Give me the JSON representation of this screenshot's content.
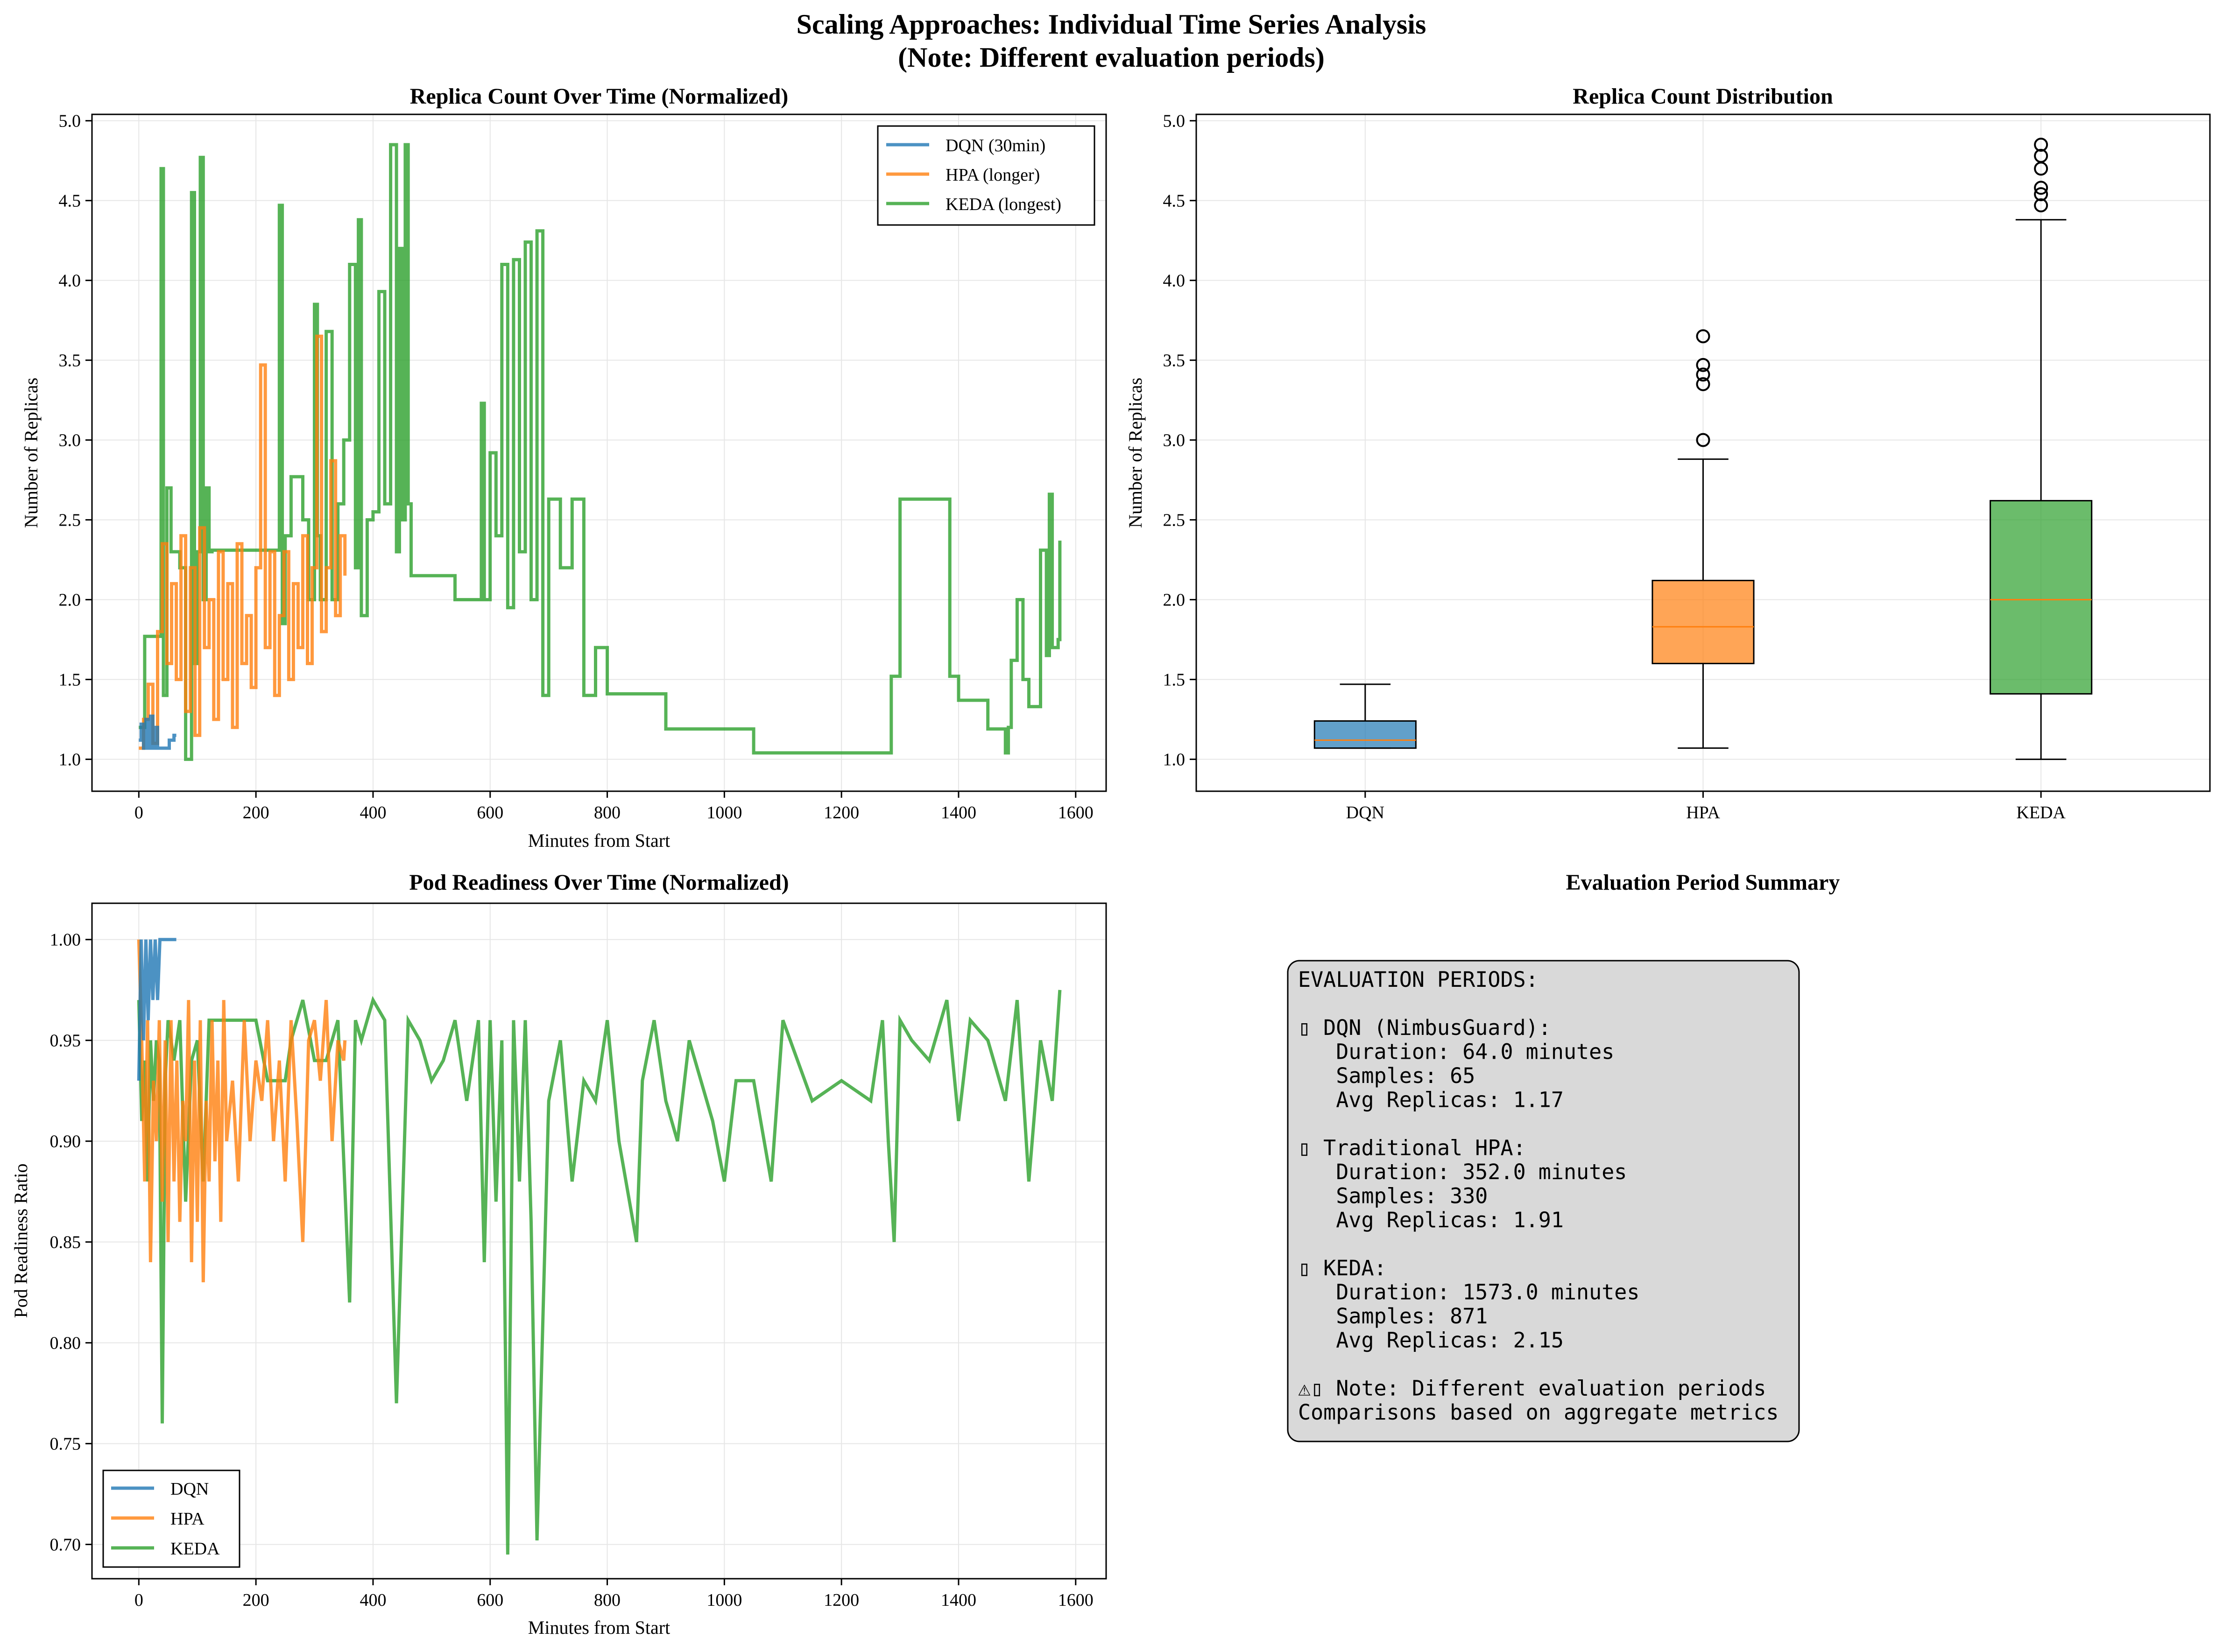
{
  "title": {
    "line1": "Scaling Approaches: Individual Time Series Analysis",
    "line2": "(Note: Different evaluation periods)"
  },
  "colors": {
    "dqn": "#1f77b4",
    "hpa": "#ff7f0e",
    "keda": "#2ca02c",
    "summary_bg": "#d9d9d9"
  },
  "chart_data": [
    {
      "type": "line",
      "title": "Replica Count Over Time (Normalized)",
      "xlabel": "Minutes from Start",
      "ylabel": "Number of Replicas",
      "xlim": [
        -80,
        1652
      ],
      "ylim": [
        0.8,
        5.04
      ],
      "xticks": [
        0,
        200,
        400,
        600,
        800,
        1000,
        1200,
        1400,
        1600
      ],
      "yticks": [
        1.0,
        1.5,
        2.0,
        2.5,
        3.0,
        3.5,
        4.0,
        4.5,
        5.0
      ],
      "grid": true,
      "legend_position": "top-right",
      "step": true,
      "series": [
        {
          "name": "DQN (30min)",
          "key": "dqn",
          "x": [
            0,
            4,
            8,
            12,
            16,
            20,
            24,
            28,
            32,
            36,
            40,
            44,
            48,
            52,
            56,
            60,
            64
          ],
          "y": [
            1.12,
            1.22,
            1.07,
            1.25,
            1.07,
            1.27,
            1.07,
            1.2,
            1.07,
            1.07,
            1.07,
            1.07,
            1.07,
            1.12,
            1.12,
            1.15,
            1.15
          ]
        },
        {
          "name": "HPA (longer)",
          "key": "hpa",
          "x": [
            0,
            8,
            16,
            24,
            32,
            40,
            48,
            56,
            64,
            72,
            80,
            88,
            96,
            104,
            112,
            120,
            128,
            136,
            144,
            152,
            160,
            168,
            176,
            184,
            192,
            200,
            208,
            216,
            224,
            232,
            240,
            248,
            256,
            264,
            272,
            280,
            288,
            296,
            304,
            312,
            320,
            328,
            336,
            344,
            352
          ],
          "y": [
            1.07,
            1.25,
            1.47,
            1.1,
            1.8,
            2.35,
            1.6,
            2.1,
            1.5,
            2.4,
            1.3,
            2.2,
            1.15,
            2.45,
            1.7,
            2.0,
            1.25,
            2.3,
            1.5,
            2.1,
            1.2,
            2.35,
            1.6,
            1.9,
            1.45,
            2.2,
            3.47,
            1.7,
            2.3,
            1.4,
            1.9,
            2.3,
            1.5,
            2.1,
            1.7,
            2.4,
            1.6,
            2.2,
            3.65,
            1.8,
            2.2,
            2.87,
            1.9,
            2.4,
            2.15
          ]
        },
        {
          "name": "KEDA (longest)",
          "key": "keda",
          "x": [
            0,
            10,
            20,
            30,
            38,
            42,
            48,
            55,
            70,
            80,
            90,
            95,
            100,
            105,
            110,
            115,
            120,
            125,
            140,
            200,
            240,
            245,
            250,
            260,
            270,
            280,
            290,
            300,
            305,
            310,
            320,
            330,
            340,
            350,
            360,
            370,
            375,
            380,
            390,
            400,
            410,
            420,
            430,
            440,
            445,
            450,
            455,
            460,
            465,
            470,
            480,
            500,
            540,
            580,
            585,
            590,
            600,
            610,
            620,
            630,
            640,
            650,
            660,
            670,
            680,
            690,
            700,
            720,
            740,
            760,
            780,
            800,
            850,
            900,
            950,
            1000,
            1050,
            1100,
            1200,
            1280,
            1285,
            1290,
            1300,
            1380,
            1385,
            1400,
            1420,
            1450,
            1470,
            1480,
            1485,
            1490,
            1500,
            1510,
            1520,
            1530,
            1540,
            1550,
            1555,
            1560,
            1570,
            1573
          ],
          "y": [
            1.2,
            1.77,
            1.77,
            1.77,
            4.7,
            1.4,
            2.7,
            2.3,
            2.2,
            1.0,
            4.55,
            1.6,
            2.3,
            4.77,
            2.0,
            2.7,
            2.3,
            2.31,
            2.31,
            2.31,
            4.47,
            1.85,
            2.4,
            2.77,
            2.77,
            2.5,
            2.0,
            3.85,
            2.4,
            2.0,
            3.68,
            2.0,
            2.6,
            3.0,
            4.1,
            2.2,
            4.38,
            1.9,
            2.5,
            2.55,
            3.93,
            2.6,
            4.85,
            2.3,
            4.2,
            2.5,
            4.85,
            2.6,
            2.15,
            2.15,
            2.15,
            2.15,
            2.0,
            2.0,
            3.23,
            2.0,
            2.92,
            2.4,
            4.1,
            1.95,
            4.13,
            2.3,
            4.24,
            2.0,
            4.31,
            1.4,
            2.63,
            2.2,
            2.63,
            1.4,
            1.7,
            1.41,
            1.41,
            1.19,
            1.19,
            1.19,
            1.04,
            1.04,
            1.04,
            1.04,
            1.52,
            1.52,
            2.63,
            2.63,
            1.52,
            1.37,
            1.37,
            1.19,
            1.19,
            1.04,
            1.2,
            1.62,
            2.0,
            1.5,
            1.33,
            1.33,
            2.31,
            1.65,
            2.66,
            1.7,
            1.75,
            2.37
          ]
        }
      ]
    },
    {
      "type": "box",
      "title": "Replica Count Distribution",
      "ylabel": "Number of Replicas",
      "categories": [
        "DQN",
        "HPA",
        "KEDA"
      ],
      "ylim": [
        0.8,
        5.04
      ],
      "yticks": [
        1.0,
        1.5,
        2.0,
        2.5,
        3.0,
        3.5,
        4.0,
        4.5,
        5.0
      ],
      "grid": true,
      "boxes": [
        {
          "label": "DQN",
          "key": "dqn",
          "whislo": 1.07,
          "q1": 1.07,
          "med": 1.12,
          "q3": 1.24,
          "whishi": 1.47,
          "fliers": []
        },
        {
          "label": "HPA",
          "key": "hpa",
          "whislo": 1.07,
          "q1": 1.6,
          "med": 1.83,
          "q3": 2.12,
          "whishi": 2.88,
          "fliers": [
            3.0,
            3.35,
            3.41,
            3.47,
            3.65
          ]
        },
        {
          "label": "KEDA",
          "key": "keda",
          "whislo": 1.0,
          "q1": 1.41,
          "med": 2.0,
          "q3": 2.62,
          "whishi": 4.38,
          "fliers": [
            4.47,
            4.54,
            4.58,
            4.7,
            4.78,
            4.85
          ]
        }
      ]
    },
    {
      "type": "line",
      "title": "Pod Readiness Over Time (Normalized)",
      "xlabel": "Minutes from Start",
      "ylabel": "Pod Readiness Ratio",
      "xlim": [
        -80,
        1652
      ],
      "ylim": [
        0.683,
        1.018
      ],
      "xticks": [
        0,
        200,
        400,
        600,
        800,
        1000,
        1200,
        1400,
        1600
      ],
      "yticks": [
        0.7,
        0.75,
        0.8,
        0.85,
        0.9,
        0.95,
        1.0
      ],
      "grid": true,
      "legend_position": "bottom-left",
      "step": false,
      "series": [
        {
          "name": "DQN",
          "key": "dqn",
          "x": [
            0,
            4,
            8,
            12,
            16,
            20,
            24,
            28,
            32,
            36,
            40,
            44,
            48,
            52,
            56,
            60,
            64
          ],
          "y": [
            0.93,
            1.0,
            0.95,
            1.0,
            0.96,
            1.0,
            0.97,
            1.0,
            0.97,
            1.0,
            1.0,
            1.0,
            1.0,
            1.0,
            1.0,
            1.0,
            1.0
          ]
        },
        {
          "name": "HPA",
          "key": "hpa",
          "x": [
            0,
            5,
            10,
            15,
            20,
            25,
            30,
            35,
            40,
            45,
            50,
            55,
            60,
            65,
            70,
            75,
            80,
            85,
            90,
            95,
            100,
            105,
            110,
            115,
            120,
            125,
            130,
            135,
            140,
            145,
            150,
            160,
            170,
            180,
            190,
            200,
            210,
            220,
            230,
            240,
            250,
            260,
            270,
            280,
            290,
            300,
            310,
            320,
            330,
            340,
            350,
            352
          ],
          "y": [
            1.0,
            0.95,
            0.88,
            0.96,
            0.84,
            0.93,
            0.9,
            0.96,
            0.87,
            0.95,
            0.85,
            0.96,
            0.88,
            0.94,
            0.86,
            0.92,
            0.9,
            0.97,
            0.84,
            0.94,
            0.86,
            0.96,
            0.83,
            0.92,
            0.88,
            0.96,
            0.89,
            0.94,
            0.86,
            0.97,
            0.9,
            0.93,
            0.88,
            0.96,
            0.9,
            0.94,
            0.92,
            0.96,
            0.9,
            0.94,
            0.88,
            0.96,
            0.91,
            0.85,
            0.95,
            0.96,
            0.93,
            0.97,
            0.9,
            0.95,
            0.94,
            0.95
          ]
        },
        {
          "name": "KEDA",
          "key": "keda",
          "x": [
            0,
            5,
            10,
            15,
            20,
            25,
            30,
            35,
            40,
            45,
            50,
            60,
            70,
            80,
            90,
            100,
            110,
            120,
            140,
            180,
            200,
            220,
            250,
            260,
            280,
            300,
            320,
            340,
            360,
            370,
            380,
            400,
            420,
            440,
            460,
            480,
            500,
            520,
            540,
            560,
            580,
            590,
            600,
            610,
            620,
            630,
            640,
            650,
            660,
            670,
            680,
            700,
            720,
            740,
            760,
            780,
            800,
            820,
            850,
            860,
            880,
            900,
            920,
            940,
            960,
            980,
            1000,
            1020,
            1050,
            1080,
            1100,
            1150,
            1200,
            1250,
            1270,
            1280,
            1290,
            1300,
            1320,
            1350,
            1380,
            1400,
            1420,
            1450,
            1480,
            1500,
            1520,
            1540,
            1560,
            1573
          ],
          "y": [
            0.97,
            0.91,
            0.94,
            0.88,
            0.95,
            0.92,
            0.95,
            0.94,
            0.76,
            0.93,
            0.96,
            0.94,
            0.96,
            0.87,
            0.94,
            0.95,
            0.88,
            0.96,
            0.96,
            0.96,
            0.96,
            0.93,
            0.93,
            0.95,
            0.97,
            0.94,
            0.94,
            0.96,
            0.82,
            0.96,
            0.95,
            0.97,
            0.96,
            0.77,
            0.96,
            0.95,
            0.93,
            0.94,
            0.96,
            0.92,
            0.96,
            0.84,
            0.96,
            0.87,
            0.95,
            0.695,
            0.96,
            0.88,
            0.96,
            0.86,
            0.702,
            0.92,
            0.95,
            0.88,
            0.93,
            0.92,
            0.96,
            0.9,
            0.85,
            0.93,
            0.96,
            0.92,
            0.9,
            0.95,
            0.93,
            0.91,
            0.88,
            0.93,
            0.93,
            0.88,
            0.96,
            0.92,
            0.93,
            0.92,
            0.96,
            0.9,
            0.85,
            0.96,
            0.95,
            0.94,
            0.97,
            0.91,
            0.96,
            0.95,
            0.92,
            0.97,
            0.88,
            0.95,
            0.92,
            0.975
          ]
        }
      ]
    }
  ],
  "summary": {
    "title": "Evaluation Period Summary",
    "lines": [
      "EVALUATION PERIODS:",
      "",
      "▯ DQN (NimbusGuard):",
      "   Duration: 64.0 minutes",
      "   Samples: 65",
      "   Avg Replicas: 1.17",
      "",
      "▯ Traditional HPA:",
      "   Duration: 352.0 minutes",
      "   Samples: 330",
      "   Avg Replicas: 1.91",
      "",
      "▯ KEDA:",
      "   Duration: 1573.0 minutes",
      "   Samples: 871",
      "   Avg Replicas: 2.15",
      "",
      "⚠▯ Note: Different evaluation periods",
      "Comparisons based on aggregate metrics"
    ]
  }
}
